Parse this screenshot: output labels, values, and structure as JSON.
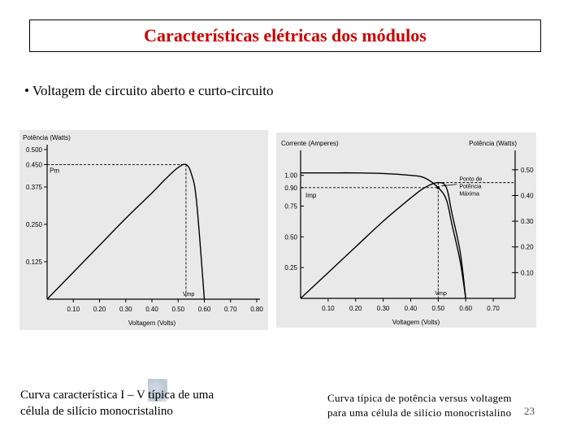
{
  "title": "Características elétricas dos módulos",
  "bullet": "• Voltagem de circuito aberto e curto-circuito",
  "captions": {
    "left_line1": "Curva característica I – V típica de uma",
    "left_line2": "célula de silício  monocristalino",
    "right_line1": "Curva típica de potência versus voltagem",
    "right_line2": "para uma célula de silício monocristalino"
  },
  "slide_number": "23",
  "colors": {
    "title": "#cc0000",
    "scan_bg": "#e9e9e9",
    "line": "#000000"
  },
  "chart_data": [
    {
      "type": "line",
      "ylabel": "Potência (Watts)",
      "xlabel": "Voltagem (Volts)",
      "x_ticks": [
        "0.10",
        "0.20",
        "0.30",
        "0.40",
        "0.50",
        "0.60",
        "0.70",
        "0.80"
      ],
      "y_ticks": [
        "0.125",
        "0.250",
        "0.375",
        "0.450",
        "0.500"
      ],
      "xlim": [
        0,
        0.8
      ],
      "ylim": [
        0,
        0.5
      ],
      "annotations": {
        "pm": "Pm",
        "vmp": "Vmp"
      },
      "series": [
        {
          "x": [
            0,
            0.1,
            0.2,
            0.3,
            0.4,
            0.45,
            0.5,
            0.53,
            0.55,
            0.57,
            0.6
          ],
          "y": [
            0,
            0.09,
            0.18,
            0.27,
            0.355,
            0.4,
            0.44,
            0.45,
            0.42,
            0.33,
            0
          ]
        }
      ]
    },
    {
      "type": "line",
      "ylabel_left": "Corrente (Amperes)",
      "ylabel_right": "Potência (Watts)",
      "xlabel": "Voltagem (Volts)",
      "x_ticks": [
        "0.10",
        "0.20",
        "0.30",
        "0.40",
        "0.50",
        "0.60",
        "0.70"
      ],
      "y_ticks_left": [
        "0.25",
        "0.50",
        "0.75",
        "0.90",
        "1.00"
      ],
      "y_ticks_right": [
        "0.10",
        "0.20",
        "0.30",
        "0.40",
        "0.50"
      ],
      "xlim": [
        0,
        0.75
      ],
      "ylim_left": [
        0,
        1.15
      ],
      "ylim_right": [
        0,
        0.55
      ],
      "annotations": {
        "pm": "Ponto de Potência Máxima",
        "imp": "Imp",
        "vmp": "Vmp"
      },
      "series": [
        {
          "axis": "left",
          "x": [
            0,
            0.1,
            0.2,
            0.3,
            0.4,
            0.45,
            0.5,
            0.53,
            0.55,
            0.58,
            0.6
          ],
          "y": [
            1.02,
            1.02,
            1.02,
            1.015,
            1.0,
            0.98,
            0.9,
            0.8,
            0.6,
            0.3,
            0
          ]
        },
        {
          "axis": "right",
          "x": [
            0,
            0.1,
            0.2,
            0.3,
            0.4,
            0.45,
            0.5,
            0.53,
            0.55,
            0.58,
            0.6
          ],
          "y": [
            0,
            0.1,
            0.2,
            0.3,
            0.39,
            0.43,
            0.45,
            0.43,
            0.33,
            0.18,
            0
          ]
        }
      ]
    }
  ]
}
